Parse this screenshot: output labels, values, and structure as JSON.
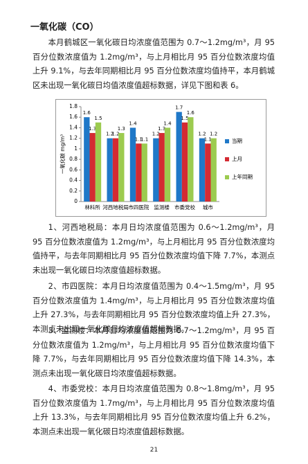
{
  "heading": "一氧化碳（CO）",
  "paragraphs": [
    "本月鹤城区一氧化碳日均浓度值范围为 0.7～1.2mg/m³，月 95 百分位数浓度值为 1.2mg/m³，与上月相比月 95 百分位数浓度均值上升 9.1%，与去年同期相比月 95 百分位数浓度均值持平，本月鹤城区未出现一氧化碳日均值浓度值超标数据，详见下图和表 6。",
    "1、河西地税局：本月日均浓度值范围为 0.6～1.2mg/m³，月 95 百分位数浓度值为 1.2mg/m³，与上月相比月 95 百分位数浓度均值持平，与去年同期相比月 95 百分位数浓度均值下降 7.7%，本测点未出现一氧化碳日均浓度值超标数据。",
    "2、市四医院：本月日均浓度值范围为 0.4～1.5mg/m³，月 95 百分位数浓度值为 1.4mg/m³，与上月相比月 95 百分位数浓度均值上升 27.3%，与去年同期相比月 95 百分位数浓度均值上升 27.3%，本测点未出现一氧化碳日均浓度值超标数据。",
    "3、监测楼：本月日均浓度值范围为 0.7～1.2mg/m³，月 95 百分位数浓度值为 1.2mg/m³，与上月相比月 95 百分位数浓度均值下降 7.7%，与去年同期相比月 95 百分位数浓度均值下降 14.3%，本测点未出现一氧化碳日均浓度值超标数据。",
    "4、市委党校：本月日均浓度值范围为 0.8～1.8mg/m³，月 95 百分位数浓度值为 1.7mg/m³，与上月相比月 95 百分位数浓度均值上升 13.3%，与去年同期相比月 95 百分位数浓度均值上升 6.2%，本测点未出现一氧化碳日均浓度值超标数据。"
  ],
  "page_number": "21",
  "chart_data": {
    "type": "bar",
    "y_label": "一氧化碳 mg/m³",
    "categories": [
      "林科所",
      "河西地税局",
      "市四医院",
      "监测楼",
      "市委党校",
      "城市"
    ],
    "series": [
      {
        "name": "当期",
        "color": "#1f78c8",
        "values": [
          1.6,
          1.2,
          1.4,
          1.2,
          1.7,
          1.2
        ]
      },
      {
        "name": "上月",
        "color": "#d42a32",
        "values": [
          1.3,
          1.2,
          1.1,
          1.3,
          1.5,
          1.1
        ]
      },
      {
        "name": "上年同期",
        "color": "#9ccb4f",
        "values": [
          1.5,
          1.3,
          1.1,
          1.4,
          1.6,
          1.2
        ]
      }
    ],
    "ylim": [
      0,
      1.8
    ],
    "yticks": [
      0,
      0.2,
      0.4,
      0.6,
      0.8,
      1,
      1.2,
      1.4,
      1.6,
      1.8
    ]
  }
}
